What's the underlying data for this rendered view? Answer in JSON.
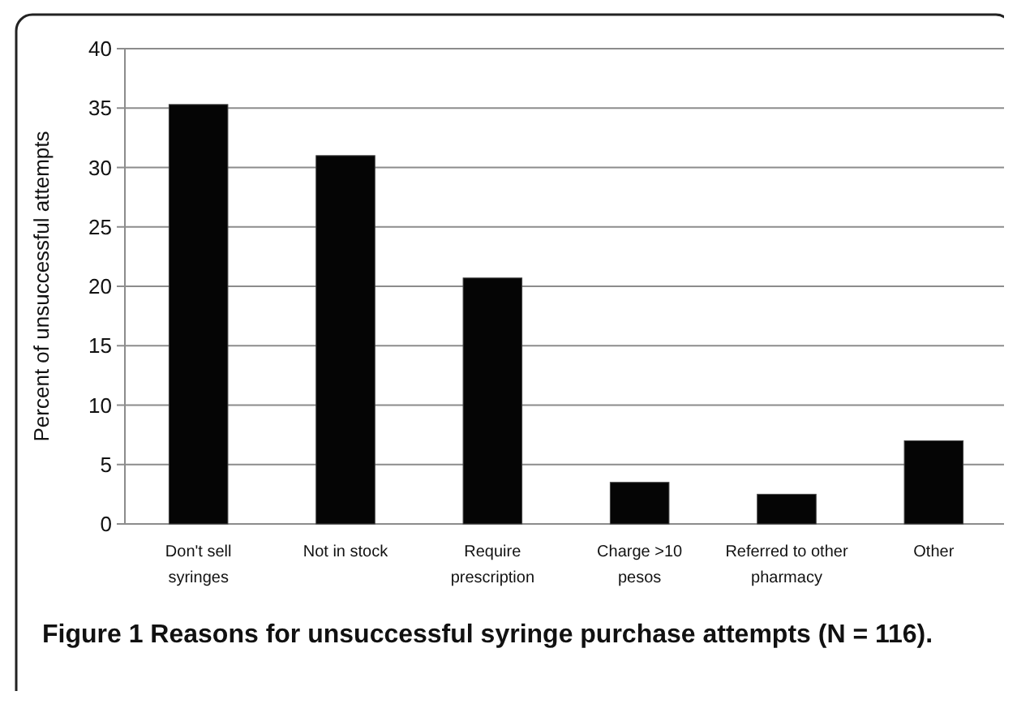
{
  "chart_data": {
    "type": "bar",
    "title": "Figure 1 Reasons for unsuccessful syringe purchase attempts (N = 116).",
    "ylabel": "Percent of  unsuccessful attempts",
    "categories": [
      "Don't sell syringes",
      "Not in stock",
      "Require prescription",
      "Charge >10 pesos",
      "Referred to other pharmacy",
      "Other"
    ],
    "values": [
      35.3,
      31.0,
      20.7,
      3.5,
      2.5,
      7.0
    ],
    "color": "#050505",
    "ylim": [
      0,
      40
    ],
    "yticks": [
      0,
      5,
      10,
      15,
      20,
      25,
      30,
      35,
      40
    ],
    "grid": "y"
  }
}
